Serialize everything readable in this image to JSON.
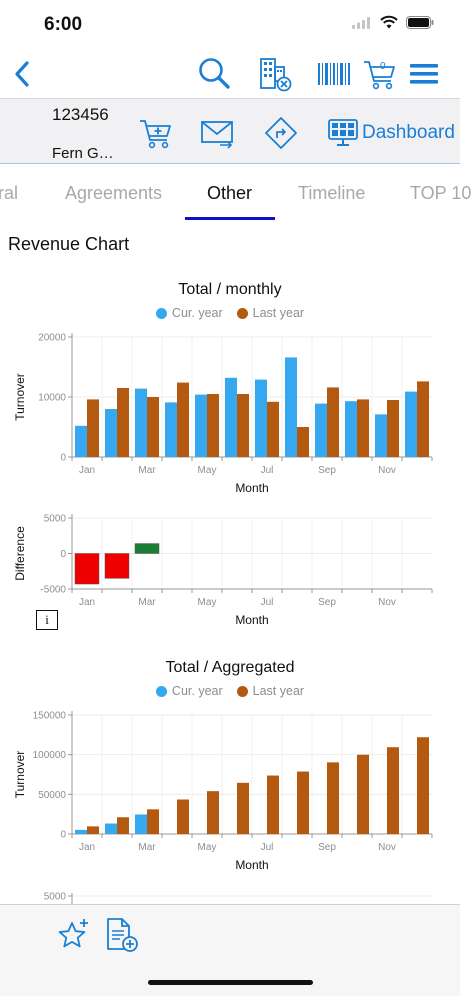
{
  "status": {
    "time": "6:00"
  },
  "nav": {
    "back_icon": "chevron-left-icon",
    "search_icon": "search-icon",
    "building_icon": "building-remove-icon",
    "barcode_icon": "barcode-icon",
    "cart_count": "0",
    "menu_icon": "hamburger-menu-icon"
  },
  "customer": {
    "id": "123456",
    "name": "Fern G…"
  },
  "actions": {
    "dashboard_label": "Dashboard"
  },
  "tabs": [
    {
      "label": "ral",
      "active": false
    },
    {
      "label": "Agreements",
      "active": false
    },
    {
      "label": "Other",
      "active": true
    },
    {
      "label": "Timeline",
      "active": false
    },
    {
      "label": "TOP 10",
      "active": false
    }
  ],
  "section_title": "Revenue Chart",
  "colors": {
    "accent": "#1a7fd4",
    "cur_year": "#35a8f0",
    "last_year": "#b35a10",
    "negative": "#ee0000",
    "positive": "#1a7f32"
  },
  "info_button_label": "i",
  "chart_data": [
    {
      "type": "bar",
      "title": "Total / monthly",
      "xlabel": "Month",
      "ylabel": "Turnover",
      "ylim": [
        0,
        20000
      ],
      "yticks": [
        "20000",
        "10000",
        "0"
      ],
      "xtick_labels": [
        "Jan",
        "Mar",
        "May",
        "Jul",
        "Sep",
        "Nov"
      ],
      "legend_placement": "top-center",
      "categories": [
        "Jan",
        "Feb",
        "Mar",
        "Apr",
        "May",
        "Jun",
        "Jul",
        "Aug",
        "Sep",
        "Oct",
        "Nov",
        "Dec"
      ],
      "series": [
        {
          "name": "Cur. year",
          "values": [
            5200,
            8000,
            11400,
            9100,
            10400,
            13200,
            12900,
            16600,
            8900,
            9300,
            7100,
            10900
          ]
        },
        {
          "name": "Last year",
          "values": [
            9600,
            11500,
            10000,
            12400,
            10500,
            10500,
            9200,
            5000,
            11600,
            9600,
            9500,
            12600
          ]
        }
      ]
    },
    {
      "type": "bar",
      "xlabel": "Month",
      "ylabel": "Difference",
      "ylim": [
        -5000,
        5000
      ],
      "yticks": [
        "5000",
        "0",
        "-5000"
      ],
      "xtick_labels": [
        "Jan",
        "Mar",
        "May",
        "Jul",
        "Sep",
        "Nov"
      ],
      "categories": [
        "Jan",
        "Feb",
        "Mar",
        "Apr",
        "May",
        "Jun",
        "Jul",
        "Aug",
        "Sep",
        "Oct",
        "Nov",
        "Dec"
      ],
      "values": [
        -4300,
        -3500,
        1400,
        null,
        null,
        null,
        null,
        null,
        null,
        null,
        null,
        null
      ]
    },
    {
      "type": "bar",
      "title": "Total / Aggregated",
      "xlabel": "Month",
      "ylabel": "Turnover",
      "ylim": [
        0,
        150000
      ],
      "yticks": [
        "150000",
        "100000",
        "50000",
        "0"
      ],
      "xtick_labels": [
        "Jan",
        "Mar",
        "May",
        "Jul",
        "Sep",
        "Nov"
      ],
      "legend_placement": "top-center",
      "categories": [
        "Jan",
        "Feb",
        "Mar",
        "Apr",
        "May",
        "Jun",
        "Jul",
        "Aug",
        "Sep",
        "Oct",
        "Nov",
        "Dec"
      ],
      "series": [
        {
          "name": "Cur. year",
          "values": [
            5200,
            13200,
            24600,
            null,
            null,
            null,
            null,
            null,
            null,
            null,
            null,
            null
          ]
        },
        {
          "name": "Last year",
          "values": [
            9600,
            21100,
            31100,
            43500,
            54000,
            64500,
            73700,
            78700,
            90300,
            99900,
            109400,
            122000
          ]
        }
      ]
    },
    {
      "type": "bar",
      "yticks": [
        "5000"
      ]
    }
  ]
}
